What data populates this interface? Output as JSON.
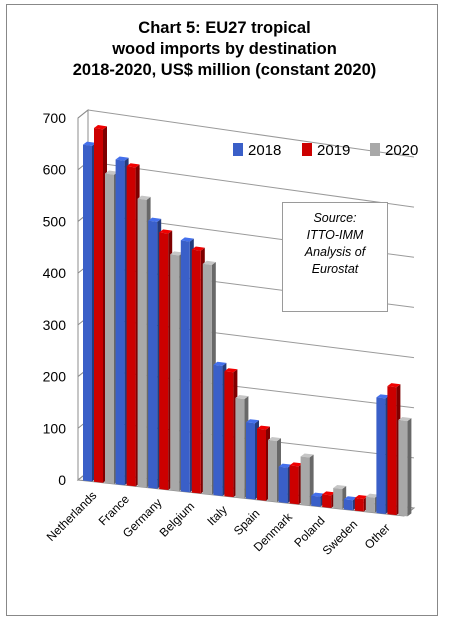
{
  "chart_data": {
    "type": "bar",
    "title_lines": [
      "Chart 5: EU27 tropical",
      "wood imports by destination",
      "2018-2020, US$ million (constant 2020)"
    ],
    "categories": [
      "Netherlands",
      "France",
      "Germany",
      "Belgium",
      "Italy",
      "Spain",
      "Denmark",
      "Poland",
      "Sweden",
      "Other"
    ],
    "series": [
      {
        "name": "2018",
        "color": "#3a5fc8",
        "values": [
          650,
          630,
          520,
          490,
          255,
          150,
          70,
          20,
          20,
          230
        ]
      },
      {
        "name": "2019",
        "color": "#cc0000",
        "values": [
          685,
          620,
          500,
          475,
          245,
          140,
          75,
          25,
          25,
          255
        ]
      },
      {
        "name": "2020",
        "color": "#a8a8a8",
        "values": [
          600,
          560,
          460,
          450,
          195,
          120,
          95,
          40,
          30,
          190
        ]
      }
    ],
    "y_ticks": [
      0,
      100,
      200,
      300,
      400,
      500,
      600,
      700
    ],
    "ylim": [
      0,
      700
    ],
    "grid": true,
    "legend_position": "top-right",
    "annotation_lines": [
      "Source:",
      "ITTO-IMM",
      "Analysis of",
      "Eurostat"
    ]
  }
}
